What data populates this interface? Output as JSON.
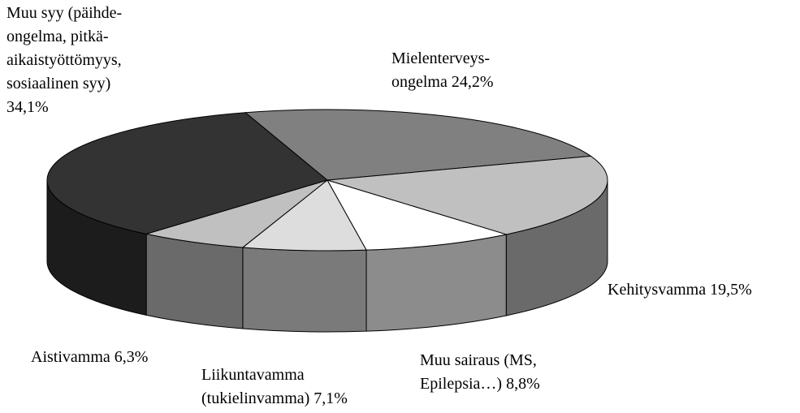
{
  "chart_data": {
    "type": "pie",
    "categories": [
      "Mielenterveys-ongelma",
      "Kehitysvamma",
      "Muu sairaus (MS, Epilepsia…)",
      "Liikuntavamma (tukielinvamma)",
      "Aistivamma",
      "Muu syy (päihde-ongelma, pitkä-aikaistyöttömyys, sosiaalinen syy)"
    ],
    "values": [
      24.2,
      19.5,
      8.8,
      7.1,
      6.3,
      34.1
    ],
    "value_labels": [
      "24,2%",
      "19,5%",
      "8,8%",
      "7,1%",
      "6,3%",
      "34,1%"
    ],
    "colors": [
      "#808080",
      "#c0c0c0",
      "#ffffff",
      "#dddddd",
      "#c0c0c0",
      "#333333"
    ]
  }
}
